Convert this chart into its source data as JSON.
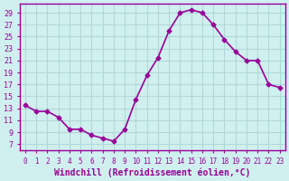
{
  "x": [
    0,
    1,
    2,
    3,
    4,
    5,
    6,
    7,
    8,
    9,
    10,
    11,
    12,
    13,
    14,
    15,
    16,
    17,
    18,
    19,
    20,
    21,
    22,
    23
  ],
  "y": [
    13.5,
    12.5,
    12.5,
    11.5,
    9.5,
    9.5,
    8.5,
    8.0,
    7.5,
    9.5,
    14.5,
    18.5,
    21.5,
    26.0,
    29.0,
    29.5,
    29.0,
    27.0,
    24.5,
    22.5,
    21.0,
    21.0,
    17.0,
    16.5
  ],
  "line_color": "#990099",
  "marker": "D",
  "markersize": 2.5,
  "linewidth": 1.2,
  "bg_color": "#d0f0f0",
  "grid_color": "#b0d8d8",
  "xlabel": "Windchill (Refroidissement éolien,°C)",
  "yticks": [
    7,
    9,
    11,
    13,
    15,
    17,
    19,
    21,
    23,
    25,
    27,
    29
  ],
  "xticks": [
    0,
    1,
    2,
    3,
    4,
    5,
    6,
    7,
    8,
    9,
    10,
    11,
    12,
    13,
    14,
    15,
    16,
    17,
    18,
    19,
    20,
    21,
    22,
    23
  ],
  "tick_color": "#990099",
  "label_color": "#990099",
  "axis_color": "#990099"
}
